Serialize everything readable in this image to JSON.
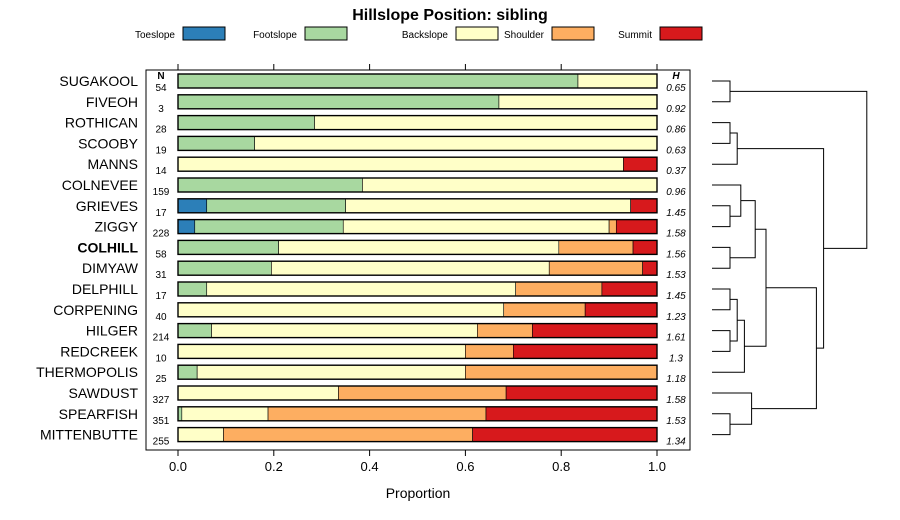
{
  "chart_data": {
    "type": "bar",
    "stacked": true,
    "orientation": "horizontal",
    "title": "Hillslope Position: sibling",
    "xlabel": "Proportion",
    "xlim": [
      0,
      1
    ],
    "xticks": [
      "0.0",
      "0.2",
      "0.4",
      "0.6",
      "0.8",
      "1.0"
    ],
    "n_header": "N",
    "h_header": "H",
    "legend_position": "top",
    "categories": [
      "SUGAKOOL",
      "FIVEOH",
      "ROTHICAN",
      "SCOOBY",
      "MANNS",
      "COLNEVEE",
      "GRIEVES",
      "ZIGGY",
      "COLHILL",
      "DIMYAW",
      "DELPHILL",
      "CORPENING",
      "HILGER",
      "REDCREEK",
      "THERMOPOLIS",
      "SAWDUST",
      "SPEARFISH",
      "MITTENBUTTE"
    ],
    "highlight_category": "COLHILL",
    "n": [
      "54",
      "3",
      "28",
      "19",
      "14",
      "159",
      "17",
      "228",
      "58",
      "31",
      "17",
      "40",
      "214",
      "10",
      "25",
      "327",
      "351",
      "255"
    ],
    "h": [
      "0.65",
      "0.92",
      "0.86",
      "0.63",
      "0.37",
      "0.96",
      "1.45",
      "1.58",
      "1.56",
      "1.53",
      "1.45",
      "1.23",
      "1.61",
      "1.3",
      "1.18",
      "1.58",
      "1.53",
      "1.34"
    ],
    "series": [
      {
        "name": "Toeslope",
        "color": "#2c7fb8",
        "values": [
          0,
          0,
          0,
          0,
          0,
          0,
          0.06,
          0.035,
          0,
          0,
          0,
          0,
          0,
          0,
          0,
          0,
          0,
          0
        ]
      },
      {
        "name": "Footslope",
        "color": "#a8d8a0",
        "values": [
          0.835,
          0.67,
          0.285,
          0.16,
          0,
          0.385,
          0.29,
          0.31,
          0.21,
          0.195,
          0.06,
          0,
          0.07,
          0,
          0.04,
          0,
          0.008,
          0
        ]
      },
      {
        "name": "Backslope",
        "color": "#ffffc8",
        "values": [
          0.165,
          0.33,
          0.715,
          0.84,
          0.93,
          0.615,
          0.595,
          0.555,
          0.585,
          0.58,
          0.645,
          0.68,
          0.555,
          0.6,
          0.56,
          0.335,
          0.18,
          0.095
        ]
      },
      {
        "name": "Shoulder",
        "color": "#fdae61",
        "values": [
          0,
          0,
          0,
          0,
          0,
          0,
          0,
          0.015,
          0.155,
          0.195,
          0.18,
          0.17,
          0.115,
          0.1,
          0.4,
          0.35,
          0.455,
          0.52
        ]
      },
      {
        "name": "Summit",
        "color": "#d7191c",
        "values": [
          0,
          0,
          0,
          0,
          0.07,
          0,
          0.055,
          0.085,
          0.05,
          0.03,
          0.115,
          0.15,
          0.26,
          0.3,
          0,
          0.315,
          0.357,
          0.385
        ]
      }
    ],
    "dendrogram": {
      "merges": [
        [
          0,
          1,
          0.1
        ],
        [
          2,
          3,
          0.1
        ],
        [
          4,
          "m1",
          0.14
        ],
        [
          6,
          7,
          0.1
        ],
        [
          5,
          "m3",
          0.16
        ],
        [
          8,
          9,
          0.1
        ],
        [
          "m4",
          "m5",
          0.24
        ],
        [
          10,
          11,
          0.1
        ],
        [
          12,
          13,
          0.1
        ],
        [
          "m7",
          "m8",
          0.14
        ],
        [
          "m9",
          14,
          0.18
        ],
        [
          "m6",
          "m10",
          0.3
        ],
        [
          16,
          17,
          0.1
        ],
        [
          15,
          "m12",
          0.22
        ],
        [
          "m11",
          "m13",
          0.58
        ],
        [
          "m2",
          "m14",
          0.62
        ],
        [
          "m0",
          "m15",
          0.86
        ]
      ]
    }
  }
}
